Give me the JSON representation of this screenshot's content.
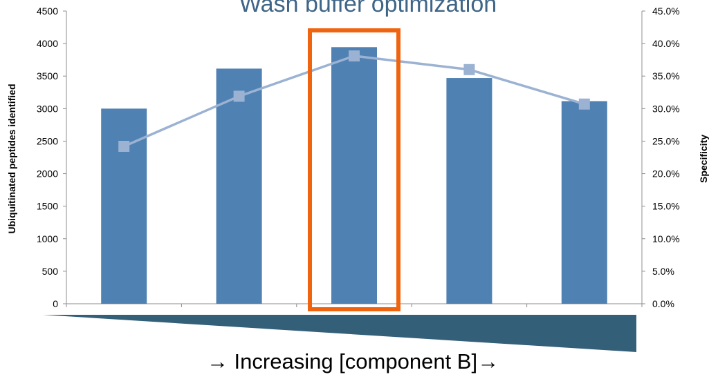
{
  "chart_data": {
    "type": "bar",
    "title": "Wash buffer optimization",
    "categories": [
      "",
      "",
      "",
      "",
      ""
    ],
    "series": [
      {
        "name": "Ubiquitinated peptides identified",
        "type": "bar",
        "axis": "left",
        "values": [
          3000,
          3615,
          3945,
          3470,
          3115
        ]
      },
      {
        "name": "Specificity",
        "type": "line",
        "axis": "right",
        "values": [
          24.2,
          31.9,
          38.1,
          36.0,
          30.7
        ]
      }
    ],
    "ylabel": "Ubiquitinated peptides identified",
    "ylim": [
      0,
      4500
    ],
    "yticks": [
      "0",
      "500",
      "1000",
      "1500",
      "2000",
      "2500",
      "3000",
      "3500",
      "4000",
      "4500"
    ],
    "y2label": "Specificity",
    "y2lim": [
      0,
      45
    ],
    "y2ticks": [
      "0.0%",
      "5.0%",
      "10.0%",
      "15.0%",
      "20.0%",
      "25.0%",
      "30.0%",
      "35.0%",
      "40.0%",
      "45.0%"
    ],
    "grid": false,
    "highlight_index": 2,
    "gradient_label": "→ Increasing [component B]→"
  },
  "colors": {
    "bar": "#4f81b3",
    "line": "#9bb2d3",
    "highlight": "#f0640f",
    "wedge": "#335f78",
    "title": "#3f6587",
    "axis": "#8c8c8c"
  }
}
